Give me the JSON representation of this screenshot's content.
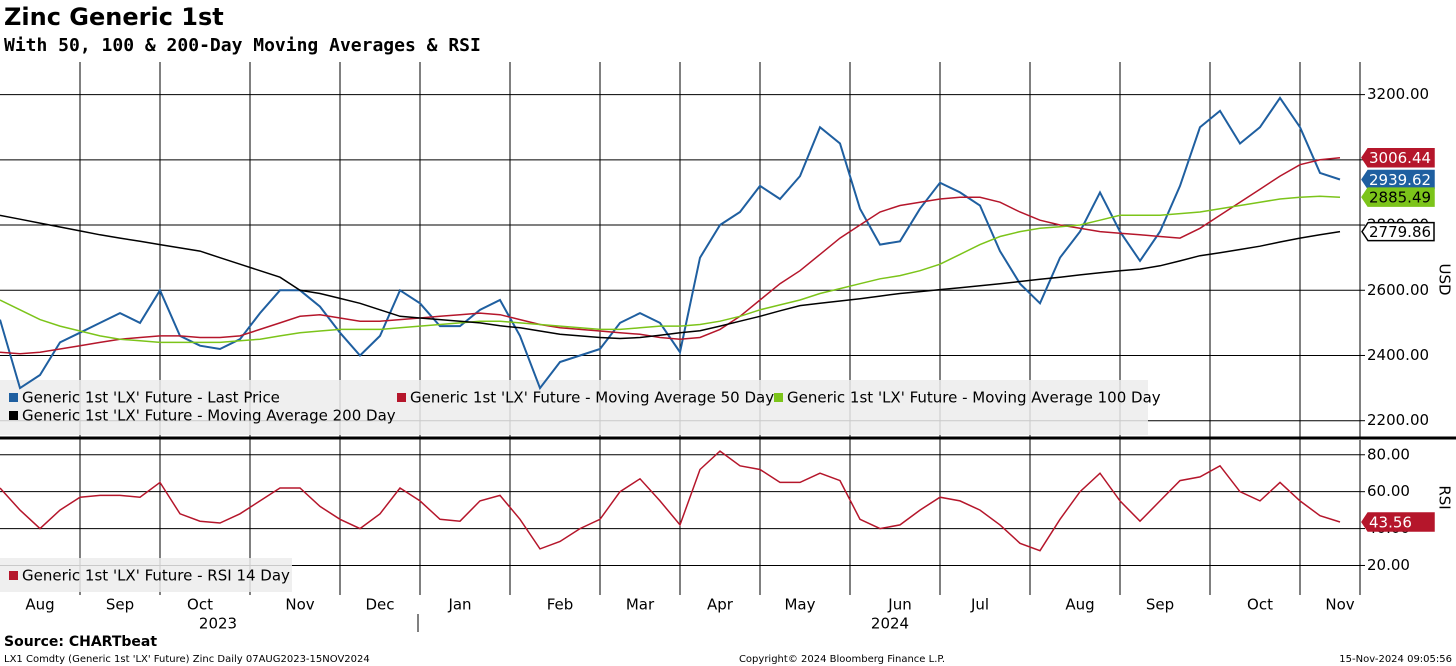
{
  "chart_data": [
    {
      "type": "line",
      "title": "Zinc Generic 1st",
      "subtitle": "With 50, 100 & 200-Day Moving Averages & RSI",
      "y_label": "USD",
      "categories": [
        null,
        null,
        "Aug",
        null,
        null,
        null,
        "Sep",
        null,
        null,
        null,
        "Oct",
        null,
        null,
        null,
        null,
        "Nov",
        null,
        null,
        null,
        "Dec",
        null,
        null,
        null,
        "Jan",
        null,
        null,
        null,
        null,
        "Feb",
        null,
        null,
        null,
        "Mar",
        null,
        null,
        null,
        "Apr",
        null,
        null,
        null,
        "May",
        null,
        null,
        null,
        null,
        "Jun",
        null,
        null,
        null,
        "Jul",
        null,
        null,
        null,
        null,
        "Aug",
        null,
        null,
        null,
        "Sep",
        null,
        null,
        null,
        null,
        "Oct",
        null,
        null,
        null,
        "Nov"
      ],
      "years": [
        "2023",
        "2024"
      ],
      "ylim": [
        2150,
        3300
      ],
      "yticks": [
        {
          "value": 2200,
          "label": "2200.00"
        },
        {
          "value": 2400,
          "label": "2400.00"
        },
        {
          "value": 2600,
          "label": "2600.00"
        },
        {
          "value": 2800,
          "label": "2800.00"
        },
        {
          "value": 3000,
          "label": "3000.00"
        },
        {
          "value": 3200,
          "label": "3200.00"
        }
      ],
      "grid": true,
      "legend": "bottom-left",
      "series": [
        {
          "name": "Generic 1st 'LX' Future - Last Price",
          "color": "#1f5fa0",
          "values": [
            2510,
            2300,
            2340,
            2440,
            2470,
            2500,
            2530,
            2500,
            2600,
            2460,
            2430,
            2420,
            2450,
            2530,
            2600,
            2600,
            2550,
            2470,
            2400,
            2460,
            2600,
            2560,
            2490,
            2490,
            2540,
            2570,
            2460,
            2300,
            2380,
            2400,
            2420,
            2500,
            2530,
            2500,
            2410,
            2700,
            2800,
            2840,
            2920,
            2880,
            2950,
            3100,
            3050,
            2850,
            2740,
            2750,
            2850,
            2930,
            2900,
            2860,
            2720,
            2620,
            2560,
            2700,
            2780,
            2900,
            2780,
            2690,
            2780,
            2920,
            3100,
            3150,
            3050,
            3100,
            3190,
            3100,
            2960,
            2939.62
          ]
        },
        {
          "name": "Generic 1st 'LX' Future - Moving Average 50 Day",
          "color": "#b5162b",
          "values": [
            2410,
            2405,
            2410,
            2420,
            2430,
            2440,
            2450,
            2455,
            2460,
            2460,
            2455,
            2455,
            2460,
            2480,
            2500,
            2520,
            2525,
            2515,
            2505,
            2505,
            2510,
            2515,
            2520,
            2525,
            2530,
            2525,
            2510,
            2495,
            2485,
            2480,
            2475,
            2470,
            2465,
            2455,
            2450,
            2455,
            2480,
            2520,
            2570,
            2620,
            2660,
            2710,
            2760,
            2800,
            2840,
            2860,
            2870,
            2880,
            2885,
            2885,
            2870,
            2840,
            2815,
            2800,
            2790,
            2780,
            2775,
            2770,
            2765,
            2760,
            2790,
            2830,
            2870,
            2910,
            2950,
            2985,
            3000,
            3006.44
          ]
        },
        {
          "name": "Generic 1st 'LX' Future - Moving Average 100 Day",
          "color": "#7cc41a",
          "label_color": "#000000",
          "values": [
            2570,
            2540,
            2510,
            2490,
            2475,
            2460,
            2450,
            2445,
            2440,
            2440,
            2440,
            2440,
            2445,
            2450,
            2460,
            2470,
            2475,
            2480,
            2480,
            2480,
            2485,
            2490,
            2495,
            2500,
            2505,
            2505,
            2500,
            2495,
            2490,
            2485,
            2480,
            2480,
            2485,
            2490,
            2490,
            2495,
            2505,
            2520,
            2540,
            2555,
            2570,
            2590,
            2605,
            2620,
            2635,
            2645,
            2660,
            2680,
            2710,
            2740,
            2765,
            2780,
            2790,
            2795,
            2800,
            2815,
            2830,
            2830,
            2830,
            2835,
            2840,
            2850,
            2860,
            2870,
            2880,
            2885,
            2888,
            2885.49
          ]
        },
        {
          "name": "Generic 1st 'LX' Future - Moving Average 200 Day",
          "color": "#000000",
          "tag_fill": "#ffffff",
          "values": [
            2830,
            2818,
            2806,
            2794,
            2782,
            2770,
            2760,
            2750,
            2740,
            2730,
            2720,
            2700,
            2680,
            2660,
            2640,
            2600,
            2590,
            2575,
            2560,
            2540,
            2520,
            2515,
            2510,
            2505,
            2500,
            2491,
            2485,
            2475,
            2465,
            2460,
            2455,
            2452,
            2455,
            2462,
            2470,
            2476,
            2490,
            2505,
            2520,
            2537,
            2553,
            2560,
            2567,
            2574,
            2582,
            2590,
            2596,
            2602,
            2608,
            2614,
            2620,
            2627,
            2634,
            2640,
            2647,
            2654,
            2660,
            2665,
            2675,
            2690,
            2706,
            2715,
            2725,
            2735,
            2748,
            2760,
            2770,
            2779.86
          ]
        }
      ]
    },
    {
      "type": "line",
      "y_label": "RSI",
      "ylim": [
        4,
        88
      ],
      "yticks": [
        {
          "value": 20,
          "label": "20.00"
        },
        {
          "value": 40,
          "label": "40.00"
        },
        {
          "value": 60,
          "label": "60.00"
        },
        {
          "value": 80,
          "label": "80.00"
        }
      ],
      "grid": true,
      "legend": "bottom-left",
      "series": [
        {
          "name": "Generic 1st 'LX' Future - RSI 14 Day",
          "color": "#b5162b",
          "values": [
            62,
            50,
            40,
            50,
            57,
            58,
            58,
            57,
            65,
            48,
            44,
            43,
            48,
            55,
            62,
            62,
            52,
            45,
            40,
            48,
            62,
            55,
            45,
            44,
            55,
            58,
            45,
            29,
            33,
            40,
            45,
            60,
            67,
            55,
            42,
            72,
            82,
            74,
            72,
            65,
            65,
            70,
            66,
            45,
            40,
            42,
            50,
            57,
            55,
            50,
            42,
            32,
            28,
            45,
            60,
            70,
            55,
            44,
            55,
            66,
            68,
            74,
            60,
            55,
            65,
            55,
            47,
            43.56
          ]
        }
      ]
    }
  ],
  "source": "Source: CHARTbeat",
  "footer_left": "LX1 Comdty (Generic 1st 'LX' Future) Zinc  Daily 07AUG2023-15NOV2024",
  "footer_center": "Copyright© 2024 Bloomberg Finance L.P.",
  "footer_right": "15-Nov-2024 09:05:56"
}
